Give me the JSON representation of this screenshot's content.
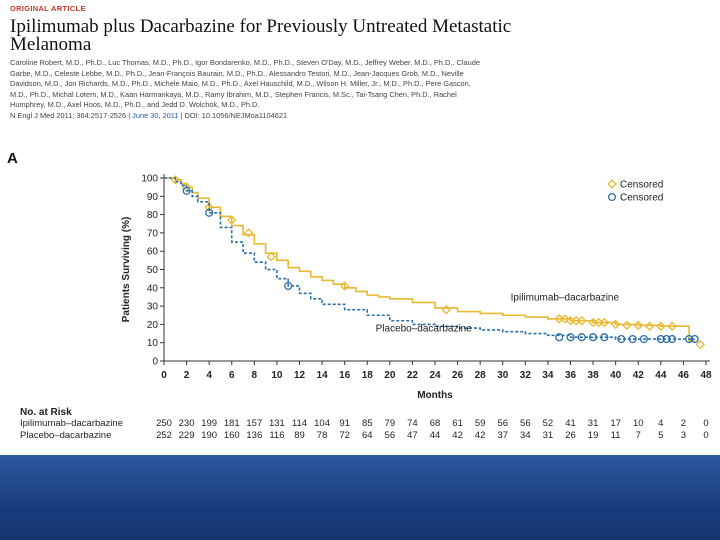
{
  "header": {
    "kicker": "ORIGINAL ARTICLE",
    "title": "Ipilimumab plus Dacarbazine for Previously Untreated Metastatic Melanoma",
    "authors": "Caroline Robert, M.D., Ph.D., Luc Thomas, M.D., Ph.D., Igor Bondarenko, M.D., Ph.D., Steven O'Day, M.D., Jeffrey Weber, M.D., Ph.D., Claude Garbe, M.D., Celeste Lebbe, M.D., Ph.D., Jean-François Baurain, M.D., Ph.D., Alessandro Testori, M.D., Jean-Jacques Grob, M.D., Neville Davidson, M.D., Jon Richards, M.D., Ph.D., Michele Maio, M.D., Ph.D., Axel Hauschild, M.D., Wilson H. Miller, Jr., M.D., Ph.D., Pere Gascon, M.D., Ph.D., Michal Lotem, M.D., Kaan Harmankaya, M.D., Ramy Ibrahim, M.D., Stephen Francis, M.Sc., Tai-Tsang Chen, Ph.D., Rachel Humphrey, M.D., Axel Hoos, M.D., Ph.D., and Jedd D. Wolchok, M.D., Ph.D.",
    "citation_pre": "N Engl J Med 2011; 364:2517-2526 | ",
    "citation_date": "June 30, 2011",
    "citation_post": " | DOI: 10.1056/NEJMoa1104621"
  },
  "panel_letter": "A",
  "chart_data": {
    "type": "line",
    "xlabel": "Months",
    "ylabel": "Patients Surviving (%)",
    "xlim": [
      0,
      48
    ],
    "ylim": [
      0,
      100
    ],
    "xticks": [
      0,
      2,
      4,
      6,
      8,
      10,
      12,
      14,
      16,
      18,
      20,
      22,
      24,
      26,
      28,
      30,
      32,
      34,
      36,
      38,
      40,
      42,
      44,
      46,
      48
    ],
    "yticks": [
      0,
      10,
      20,
      30,
      40,
      50,
      60,
      70,
      80,
      90,
      100
    ],
    "legend": [
      {
        "label": "Censored",
        "marker": "diamond",
        "color": "#e8b830"
      },
      {
        "label": "Censored",
        "marker": "circle",
        "color": "#2a6fa8"
      }
    ],
    "series": [
      {
        "name": "Ipilimumab–dacarbazine",
        "color": "#e8b830",
        "style": "solid",
        "x": [
          0,
          1,
          1.5,
          2,
          2.5,
          3,
          4,
          5,
          6,
          7,
          8,
          9,
          10,
          11,
          12,
          13,
          14,
          15,
          16,
          17,
          18,
          19,
          20,
          22,
          24,
          26,
          28,
          30,
          32,
          34,
          36,
          38,
          40,
          42,
          44,
          45,
          46,
          46.5,
          47
        ],
        "y": [
          100,
          99,
          97,
          95,
          92,
          89,
          84,
          79,
          74,
          69,
          64,
          59,
          55,
          51,
          49,
          46,
          44,
          42,
          40,
          38,
          36,
          35,
          34,
          32,
          29,
          27,
          26,
          25,
          24,
          23,
          22,
          21,
          20,
          19.5,
          19,
          19,
          19,
          11,
          11
        ],
        "censored": [
          [
            1,
            99
          ],
          [
            2,
            95
          ],
          [
            4,
            84
          ],
          [
            6,
            77
          ],
          [
            7.5,
            70
          ],
          [
            9.5,
            57
          ],
          [
            16,
            41
          ],
          [
            25,
            28
          ],
          [
            35,
            23
          ],
          [
            35.5,
            23
          ],
          [
            36,
            22
          ],
          [
            36.5,
            22
          ],
          [
            37,
            22
          ],
          [
            38,
            21
          ],
          [
            38.5,
            21
          ],
          [
            39,
            21
          ],
          [
            40,
            20
          ],
          [
            41,
            19.5
          ],
          [
            42,
            19.5
          ],
          [
            43,
            19
          ],
          [
            44,
            19
          ],
          [
            45,
            19
          ],
          [
            47.5,
            9
          ]
        ]
      },
      {
        "name": "Placebo–dacarbazine",
        "color": "#2a6fa8",
        "style": "dashed",
        "x": [
          0,
          1,
          1.5,
          2,
          2.5,
          3,
          4,
          5,
          6,
          7,
          8,
          9,
          10,
          11,
          12,
          13,
          14,
          16,
          18,
          20,
          22,
          24,
          26,
          28,
          30,
          32,
          34,
          36,
          38,
          40,
          42,
          44,
          46,
          47
        ],
        "y": [
          100,
          98,
          96,
          93,
          90,
          87,
          81,
          73,
          65,
          59,
          54,
          50,
          45,
          41,
          37,
          34,
          31,
          28,
          25,
          22,
          20,
          19,
          18,
          17,
          16,
          15,
          14,
          13,
          13,
          12,
          12,
          12,
          12,
          12
        ],
        "censored": [
          [
            2,
            93
          ],
          [
            4,
            81
          ],
          [
            11,
            41
          ],
          [
            35,
            13
          ],
          [
            36,
            13
          ],
          [
            37,
            13
          ],
          [
            38,
            13
          ],
          [
            39,
            13
          ],
          [
            40.5,
            12
          ],
          [
            41.5,
            12
          ],
          [
            42.5,
            12
          ],
          [
            44,
            12
          ],
          [
            44.5,
            12
          ],
          [
            45,
            12
          ],
          [
            46.5,
            12
          ],
          [
            47,
            12
          ]
        ]
      }
    ],
    "annotations": [
      {
        "text": "Ipilimumab–dacarbazine",
        "x": 35.5,
        "y": 33
      },
      {
        "text": "Placebo–dacarbazine",
        "x": 23,
        "y": 16
      }
    ]
  },
  "risk_table": {
    "title": "No. at Risk",
    "rows": [
      {
        "label": "Ipilimumab–dacarbazine",
        "values": [
          "250",
          "230",
          "199",
          "181",
          "157",
          "131",
          "114",
          "104",
          "91",
          "85",
          "79",
          "74",
          "68",
          "61",
          "59",
          "56",
          "56",
          "52",
          "41",
          "31",
          "17",
          "10",
          "4",
          "2",
          "0"
        ]
      },
      {
        "label": "Placebo–dacarbazine",
        "values": [
          "252",
          "229",
          "190",
          "160",
          "136",
          "116",
          "89",
          "78",
          "72",
          "64",
          "56",
          "47",
          "44",
          "42",
          "42",
          "37",
          "34",
          "31",
          "26",
          "19",
          "11",
          "7",
          "5",
          "3",
          "0"
        ]
      }
    ]
  }
}
